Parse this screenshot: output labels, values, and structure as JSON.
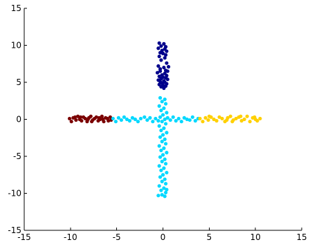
{
  "chart_data": {
    "type": "scatter",
    "title": "",
    "xlabel": "",
    "ylabel": "",
    "xlim": [
      -15,
      15
    ],
    "ylim": [
      -15,
      15
    ],
    "grid": false,
    "x_ticks": [
      -15,
      -10,
      -5,
      0,
      5,
      10,
      15
    ],
    "y_ticks": [
      -15,
      -10,
      -5,
      0,
      5,
      10,
      15
    ],
    "x_tick_labels": [
      "-15",
      "-10",
      "-5",
      "0",
      "5",
      "10",
      "15"
    ],
    "y_tick_labels": [
      "-15",
      "-10",
      "-5",
      "0",
      "5",
      "10",
      "15"
    ],
    "series": [
      {
        "color": "#00008b",
        "points": [
          [
            -0.4,
            10.3
          ],
          [
            0.1,
            10.2
          ],
          [
            -0.2,
            9.9
          ],
          [
            0.3,
            9.8
          ],
          [
            -0.5,
            9.6
          ],
          [
            0.2,
            9.5
          ],
          [
            -0.1,
            9.3
          ],
          [
            0.4,
            9.2
          ],
          [
            -0.3,
            9.0
          ],
          [
            0.0,
            8.9
          ],
          [
            0.3,
            8.7
          ],
          [
            -0.4,
            8.5
          ],
          [
            0.2,
            8.3
          ],
          [
            -0.2,
            8.0
          ],
          [
            0.4,
            7.6
          ],
          [
            -0.5,
            7.2
          ],
          [
            0.1,
            7.0
          ],
          [
            -0.3,
            6.8
          ],
          [
            0.3,
            6.6
          ],
          [
            0.5,
            6.5
          ],
          [
            -0.6,
            6.3
          ],
          [
            0.2,
            6.2
          ],
          [
            -0.1,
            6.0
          ],
          [
            0.4,
            5.9
          ],
          [
            -0.4,
            5.8
          ],
          [
            0.0,
            5.7
          ],
          [
            0.3,
            5.6
          ],
          [
            -0.2,
            5.5
          ],
          [
            0.5,
            5.4
          ],
          [
            -0.5,
            5.3
          ],
          [
            0.1,
            5.2
          ],
          [
            -0.3,
            5.1
          ],
          [
            0.2,
            5.0
          ],
          [
            -0.1,
            4.9
          ],
          [
            0.4,
            4.8
          ],
          [
            -0.4,
            4.7
          ],
          [
            0.0,
            4.6
          ],
          [
            0.3,
            4.5
          ],
          [
            -0.2,
            4.4
          ],
          [
            0.1,
            4.2
          ],
          [
            -0.3,
            6.5
          ],
          [
            0.6,
            7.1
          ]
        ]
      },
      {
        "color": "#7b0000",
        "points": [
          [
            -10.1,
            0.1
          ],
          [
            -9.9,
            -0.3
          ],
          [
            -9.7,
            0.2
          ],
          [
            -9.4,
            -0.1
          ],
          [
            -9.2,
            0.4
          ],
          [
            -9.0,
            0.0
          ],
          [
            -8.8,
            -0.2
          ],
          [
            -8.6,
            0.3
          ],
          [
            -8.4,
            0.1
          ],
          [
            -8.2,
            -0.3
          ],
          [
            -8.0,
            0.2
          ],
          [
            -7.8,
            0.4
          ],
          [
            -7.6,
            -0.1
          ],
          [
            -7.4,
            0.1
          ],
          [
            -7.2,
            0.3
          ],
          [
            -7.0,
            -0.2
          ],
          [
            -6.8,
            0.0
          ],
          [
            -6.6,
            0.4
          ],
          [
            -6.4,
            -0.3
          ],
          [
            -6.2,
            0.2
          ],
          [
            -6.0,
            0.1
          ],
          [
            -5.9,
            -0.2
          ],
          [
            -5.7,
            0.3
          ],
          [
            -5.6,
            -0.1
          ],
          [
            -8.9,
            0.3
          ],
          [
            -7.7,
            -0.3
          ],
          [
            -6.9,
            0.2
          ],
          [
            -9.5,
            0.3
          ],
          [
            -8.1,
            0.0
          ],
          [
            -6.5,
            0.0
          ]
        ]
      },
      {
        "color": "#00d8ff",
        "points": [
          [
            -5.4,
            0.1
          ],
          [
            -5.1,
            -0.3
          ],
          [
            -4.8,
            0.2
          ],
          [
            -4.5,
            -0.1
          ],
          [
            -4.2,
            0.3
          ],
          [
            -3.9,
            0.0
          ],
          [
            -3.6,
            -0.2
          ],
          [
            -3.3,
            0.2
          ],
          [
            -3.0,
            0.0
          ],
          [
            -2.7,
            -0.3
          ],
          [
            -2.4,
            0.1
          ],
          [
            -2.0,
            0.3
          ],
          [
            -1.7,
            -0.1
          ],
          [
            -1.4,
            0.2
          ],
          [
            -1.1,
            -0.3
          ],
          [
            -0.8,
            0.1
          ],
          [
            -0.5,
            -0.2
          ],
          [
            0.5,
            0.2
          ],
          [
            0.8,
            -0.1
          ],
          [
            1.1,
            0.3
          ],
          [
            1.4,
            -0.2
          ],
          [
            1.7,
            0.1
          ],
          [
            2.0,
            -0.3
          ],
          [
            2.3,
            0.2
          ],
          [
            2.6,
            0.0
          ],
          [
            2.9,
            -0.1
          ],
          [
            3.2,
            0.3
          ],
          [
            3.5,
            -0.2
          ],
          [
            3.8,
            0.1
          ],
          [
            -0.3,
            2.9
          ],
          [
            0.2,
            2.7
          ],
          [
            -0.1,
            2.4
          ],
          [
            0.3,
            2.1
          ],
          [
            -0.4,
            1.8
          ],
          [
            0.1,
            1.5
          ],
          [
            -0.2,
            1.2
          ],
          [
            0.4,
            0.9
          ],
          [
            0.0,
            0.6
          ],
          [
            -0.3,
            0.3
          ],
          [
            0.2,
            0.0
          ],
          [
            -0.1,
            -0.3
          ],
          [
            0.3,
            -0.6
          ],
          [
            -0.4,
            -0.9
          ],
          [
            0.1,
            -1.2
          ],
          [
            -0.2,
            -1.5
          ],
          [
            0.4,
            -1.8
          ],
          [
            0.0,
            -2.1
          ],
          [
            -0.3,
            -2.4
          ],
          [
            0.2,
            -2.7
          ],
          [
            -0.1,
            -3.0
          ],
          [
            0.3,
            -3.3
          ],
          [
            -0.4,
            -3.6
          ],
          [
            0.1,
            -3.9
          ],
          [
            -0.2,
            -4.2
          ],
          [
            0.4,
            -4.5
          ],
          [
            0.0,
            -4.8
          ],
          [
            -0.3,
            -5.1
          ],
          [
            0.2,
            -5.4
          ],
          [
            -0.1,
            -5.7
          ],
          [
            0.3,
            -6.0
          ],
          [
            -0.4,
            -6.3
          ],
          [
            0.1,
            -6.6
          ],
          [
            -0.2,
            -6.9
          ],
          [
            0.4,
            -7.2
          ],
          [
            0.0,
            -7.5
          ],
          [
            -0.3,
            -7.8
          ],
          [
            0.2,
            -8.1
          ],
          [
            -0.1,
            -8.4
          ],
          [
            0.3,
            -8.7
          ],
          [
            -0.4,
            -9.0
          ],
          [
            0.1,
            -9.3
          ],
          [
            -0.2,
            -9.6
          ],
          [
            0.3,
            -9.9
          ],
          [
            -0.1,
            -10.2
          ],
          [
            0.2,
            -10.4
          ],
          [
            -0.5,
            -10.3
          ],
          [
            0.4,
            -9.5
          ]
        ]
      },
      {
        "color": "#ffd000",
        "points": [
          [
            4.0,
            0.1
          ],
          [
            4.3,
            -0.3
          ],
          [
            4.6,
            0.2
          ],
          [
            4.9,
            -0.1
          ],
          [
            5.2,
            0.3
          ],
          [
            5.5,
            0.0
          ],
          [
            5.8,
            -0.2
          ],
          [
            6.1,
            0.3
          ],
          [
            6.4,
            0.1
          ],
          [
            6.7,
            -0.3
          ],
          [
            7.0,
            0.2
          ],
          [
            7.3,
            0.4
          ],
          [
            7.6,
            -0.1
          ],
          [
            7.9,
            0.1
          ],
          [
            8.2,
            0.3
          ],
          [
            8.5,
            -0.2
          ],
          [
            8.8,
            0.0
          ],
          [
            9.1,
            0.4
          ],
          [
            9.4,
            -0.3
          ],
          [
            9.7,
            0.2
          ],
          [
            10.0,
            0.0
          ],
          [
            10.2,
            -0.2
          ],
          [
            10.5,
            0.1
          ],
          [
            5.0,
            0.4
          ],
          [
            6.9,
            -0.1
          ],
          [
            8.4,
            0.4
          ],
          [
            9.9,
            0.3
          ],
          [
            7.5,
            -0.3
          ]
        ]
      }
    ]
  }
}
